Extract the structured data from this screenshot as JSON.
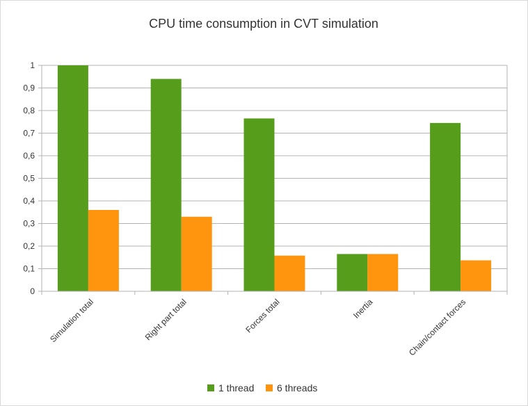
{
  "chart_data": {
    "type": "bar",
    "title": "CPU time consumption in CVT simulation",
    "xlabel": "",
    "ylabel": "",
    "categories": [
      "Simulation total",
      "Right part total",
      "Forces total",
      "Inertia",
      "Chain/contact forces"
    ],
    "series": [
      {
        "name": "1 thread",
        "color": "#579d1c",
        "values": [
          1.0,
          0.94,
          0.765,
          0.165,
          0.745
        ]
      },
      {
        "name": "6 threads",
        "color": "#ff950e",
        "values": [
          0.36,
          0.33,
          0.158,
          0.165,
          0.137
        ]
      }
    ],
    "ylim": [
      0,
      1
    ],
    "yticks": [
      "0",
      "0,1",
      "0,2",
      "0,3",
      "0,4",
      "0,5",
      "0,6",
      "0,7",
      "0,8",
      "0,9",
      "1"
    ],
    "grid": true,
    "legend": "bottom"
  }
}
